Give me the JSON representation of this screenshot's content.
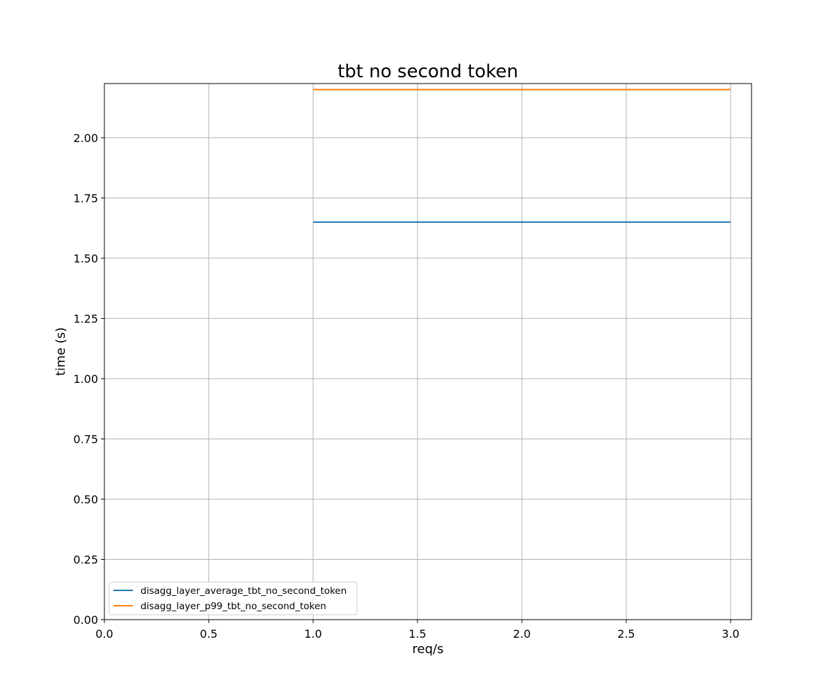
{
  "chart_data": {
    "type": "line",
    "title": "tbt no second token",
    "xlabel": "req/s",
    "ylabel": "time (s)",
    "xlim": [
      0.0,
      3.1
    ],
    "ylim": [
      0.0,
      2.225
    ],
    "xticks": [
      "0.0",
      "0.5",
      "1.0",
      "1.5",
      "2.0",
      "2.5",
      "3.0"
    ],
    "yticks": [
      "0.00",
      "0.25",
      "0.50",
      "0.75",
      "1.00",
      "1.25",
      "1.50",
      "1.75",
      "2.00"
    ],
    "grid": true,
    "legend_position": "lower-left",
    "series": [
      {
        "name": "disagg_layer_average_tbt_no_second_token",
        "color": "#1f77b4",
        "x": [
          1.0,
          2.0,
          3.0
        ],
        "y": [
          1.65,
          1.65,
          1.65
        ]
      },
      {
        "name": "disagg_layer_p99_tbt_no_second_token",
        "color": "#ff7f0e",
        "x": [
          1.0,
          2.0,
          3.0
        ],
        "y": [
          2.2,
          2.2,
          2.2
        ]
      }
    ]
  }
}
